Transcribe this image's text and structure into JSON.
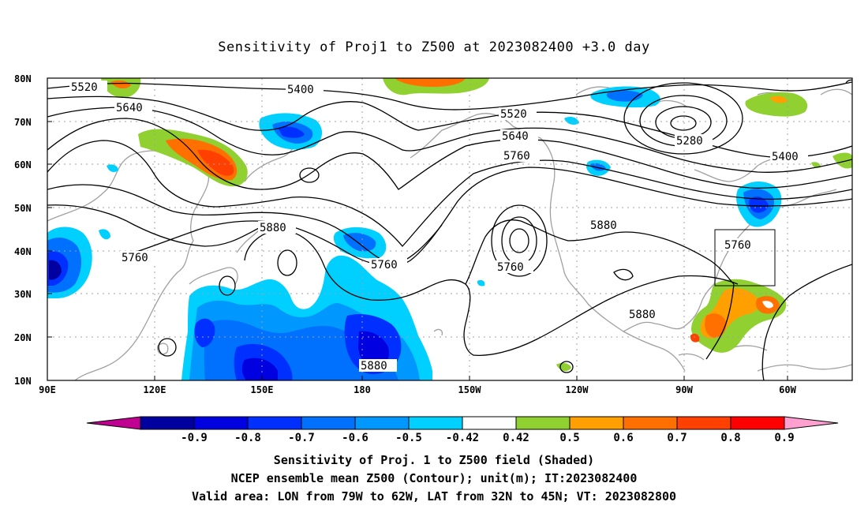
{
  "title": "Sensitivity of Proj1 to Z500 at 2023082400 +3.0 day",
  "map": {
    "lat_labels": [
      "80N",
      "70N",
      "60N",
      "50N",
      "40N",
      "30N",
      "20N",
      "10N"
    ],
    "lon_labels": [
      "90E",
      "120E",
      "150E",
      "180",
      "150W",
      "120W",
      "90W",
      "60W"
    ],
    "grid_lines": "dotted",
    "contour_labels": [
      "5520",
      "5400",
      "5640",
      "5520",
      "5640",
      "5760",
      "5280",
      "5400",
      "5880",
      "5760",
      "5760",
      "5760",
      "5880",
      "5760",
      "5880",
      "5880"
    ],
    "valid_area_box": {
      "lon": [
        "79W",
        "62W"
      ],
      "lat": [
        "32N",
        "45N"
      ]
    }
  },
  "colorbar": {
    "labels": [
      "-0.9",
      "-0.8",
      "-0.7",
      "-0.6",
      "-0.5",
      "-0.42",
      "0.42",
      "0.5",
      "0.6",
      "0.7",
      "0.8",
      "0.9"
    ],
    "colors": [
      "#c00090",
      "#0000a0",
      "#0000e0",
      "#0030ff",
      "#0070ff",
      "#0098ff",
      "#00d0ff",
      "#ffffff",
      "#90d030",
      "#ffa000",
      "#ff7000",
      "#ff4000",
      "#ff0000",
      "#ffa0d0"
    ]
  },
  "captions": {
    "line1": "Sensitivity of Proj. 1 to Z500 field (Shaded)",
    "line2": "NCEP ensemble mean Z500 (Contour); unit(m); IT:2023082400",
    "line3": "Valid area: LON from 79W to 62W, LAT from 32N to 45N; VT: 2023082800"
  }
}
